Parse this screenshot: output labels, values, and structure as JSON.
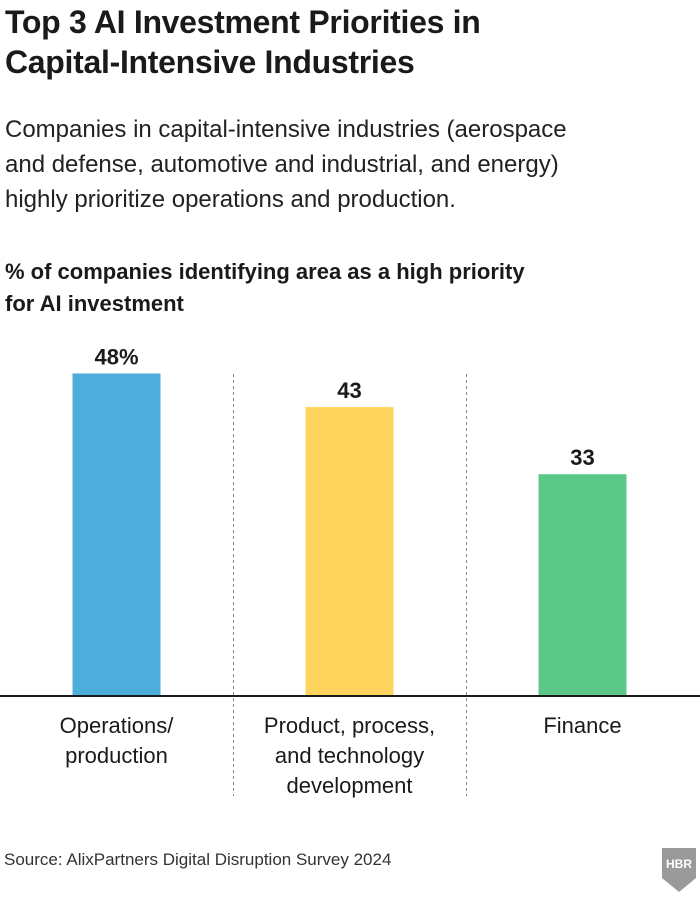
{
  "title_line1": "Top 3 AI Investment Priorities in",
  "title_line2": "Capital-Intensive Industries",
  "subtitle_lines": [
    "Companies in capital-intensive industries (aerospace",
    "and defense, automotive and industrial, and energy)",
    "highly prioritize operations and production."
  ],
  "measure_lines": [
    "% of companies identifying area as a high priority",
    "for AI investment"
  ],
  "source": "Source: AlixPartners Digital Disruption Survey 2024",
  "logo_text": "HBR",
  "chart_data": {
    "type": "bar",
    "categories": [
      [
        "Operations/",
        "production"
      ],
      [
        "Product, process,",
        "and technology",
        "development"
      ],
      [
        "Finance"
      ]
    ],
    "values": [
      48,
      43,
      33
    ],
    "value_labels": [
      "48%",
      "43",
      "33"
    ],
    "colors": [
      "#4DAEDC",
      "#FFD45C",
      "#5CC887"
    ],
    "ylim": [
      0,
      50
    ],
    "grid": false,
    "legend": "none"
  }
}
